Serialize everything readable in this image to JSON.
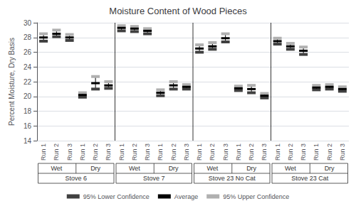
{
  "chart_data": {
    "type": "interval",
    "title": "Moisture Content of Wood Pieces",
    "ylabel": "Percent Moisture, Dry Basis",
    "categories": [
      "Run 1",
      "Run 2",
      "Run 3",
      "Run 1",
      "Run 2",
      "Run 3",
      "Run 1",
      "Run 2",
      "Run 3",
      "Run 1",
      "Run 2",
      "Run 3",
      "Run 1",
      "Run 2",
      "Run 3",
      "Run 1",
      "Run 2",
      "Run 3",
      "Run 1",
      "Run 2",
      "Run 3",
      "Run 1",
      "Run 2",
      "Run 3"
    ],
    "subgroup_labels": [
      "Wet",
      "Dry",
      "Wet",
      "Dry",
      "Wet",
      "Dry",
      "Wet",
      "Dry"
    ],
    "group_labels": [
      "Stove 6",
      "Stove 7",
      "Stove 23 No Cat",
      "Stove 23 Cat"
    ],
    "series": [
      {
        "name": "95% Lower Confidence",
        "color": "#404040",
        "values": [
          27.5,
          28.1,
          27.6,
          19.9,
          21.0,
          21.1,
          28.9,
          28.8,
          28.5,
          20.1,
          21.0,
          21.0,
          26.0,
          26.4,
          27.4,
          20.8,
          20.5,
          19.8,
          27.1,
          26.4,
          25.7,
          20.9,
          21.0,
          20.7
        ]
      },
      {
        "name": "Average",
        "color": "#000000",
        "values": [
          28.0,
          28.5,
          28.0,
          20.2,
          21.8,
          21.5,
          29.3,
          29.2,
          28.9,
          20.5,
          21.5,
          21.3,
          26.5,
          26.8,
          27.9,
          21.1,
          21.0,
          20.1,
          27.5,
          26.8,
          26.2,
          21.2,
          21.3,
          21.0
        ]
      },
      {
        "name": "95% Upper Confidence",
        "color": "#b0b0b0",
        "values": [
          28.5,
          29.0,
          28.4,
          20.5,
          22.7,
          22.0,
          29.6,
          29.5,
          29.2,
          20.9,
          22.0,
          21.6,
          27.0,
          27.3,
          28.5,
          21.4,
          21.5,
          20.4,
          27.9,
          27.2,
          26.7,
          21.5,
          21.6,
          21.3
        ]
      }
    ],
    "ylim": [
      14,
      30
    ],
    "yticks": [
      14,
      16,
      18,
      20,
      22,
      24,
      26,
      28,
      30
    ],
    "grid": true,
    "legend": "bottom"
  }
}
